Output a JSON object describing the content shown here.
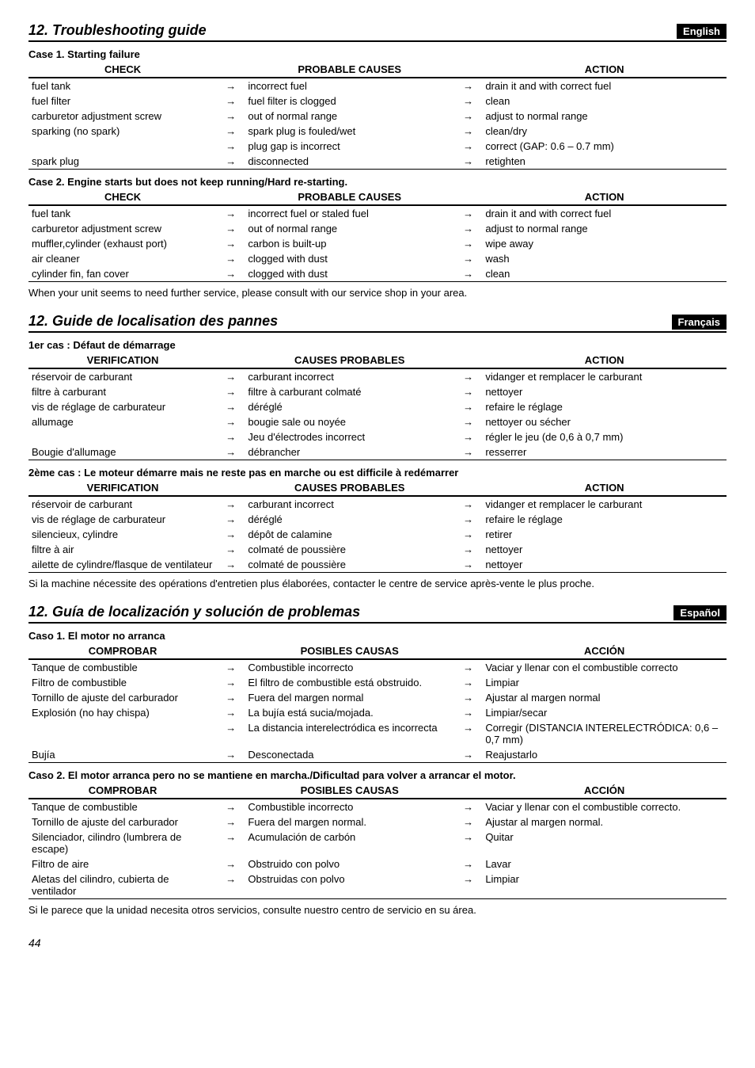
{
  "page_number": "44",
  "sections": [
    {
      "title": "12. Troubleshooting guide",
      "lang_badge": "English",
      "note": "When your unit seems to need further service, please consult with our service shop in your area.",
      "cases": [
        {
          "title": "Case 1. Starting failure",
          "headers": [
            "CHECK",
            "PROBABLE CAUSES",
            "ACTION"
          ],
          "rows": [
            [
              "fuel tank",
              "incorrect fuel",
              "drain it and with correct fuel"
            ],
            [
              "fuel filter",
              "fuel filter is clogged",
              "clean"
            ],
            [
              "carburetor adjustment screw",
              "out of normal range",
              "adjust to normal range"
            ],
            [
              "sparking (no spark)",
              "spark plug is fouled/wet",
              "clean/dry"
            ],
            [
              "",
              "plug gap is incorrect",
              "correct (GAP: 0.6 – 0.7 mm)"
            ],
            [
              "spark plug",
              "disconnected",
              "retighten"
            ]
          ]
        },
        {
          "title": "Case 2. Engine starts but does not keep running/Hard re-starting.",
          "headers": [
            "CHECK",
            "PROBABLE CAUSES",
            "ACTION"
          ],
          "rows": [
            [
              "fuel tank",
              "incorrect fuel or staled fuel",
              "drain it and with correct fuel"
            ],
            [
              "carburetor adjustment screw",
              "out of normal range",
              "adjust to normal range"
            ],
            [
              "muffler,cylinder (exhaust port)",
              "carbon is built-up",
              "wipe away"
            ],
            [
              "air cleaner",
              "clogged with dust",
              "wash"
            ],
            [
              "cylinder fin, fan cover",
              "clogged with dust",
              "clean"
            ]
          ]
        }
      ]
    },
    {
      "title": "12. Guide de localisation des pannes",
      "lang_badge": "Français",
      "note": "Si la machine nécessite des opérations d'entretien plus élaborées, contacter le centre de service après-vente le plus proche.",
      "cases": [
        {
          "title": "1er cas : Défaut de démarrage",
          "headers": [
            "VERIFICATION",
            "CAUSES PROBABLES",
            "ACTION"
          ],
          "rows": [
            [
              "réservoir de carburant",
              "carburant incorrect",
              "vidanger et remplacer le carburant"
            ],
            [
              "filtre à carburant",
              "filtre à carburant colmaté",
              "nettoyer"
            ],
            [
              "vis de réglage de carburateur",
              "déréglé",
              "refaire le réglage"
            ],
            [
              "allumage",
              "bougie sale ou noyée",
              "nettoyer ou sécher"
            ],
            [
              "",
              "Jeu d'électrodes incorrect",
              "régler le jeu (de 0,6 à 0,7 mm)"
            ],
            [
              "Bougie d'allumage",
              "débrancher",
              "resserrer"
            ]
          ]
        },
        {
          "title": "2ème cas : Le moteur démarre mais ne reste pas en marche ou est difficile à redémarrer",
          "headers": [
            "VERIFICATION",
            "CAUSES PROBABLES",
            "ACTION"
          ],
          "rows": [
            [
              "réservoir de carburant",
              "carburant incorrect",
              "vidanger et remplacer le carburant"
            ],
            [
              "vis de réglage de carburateur",
              "déréglé",
              "refaire le réglage"
            ],
            [
              "silencieux, cylindre",
              "dépôt de calamine",
              "retirer"
            ],
            [
              "filtre à air",
              "colmaté de poussière",
              "nettoyer"
            ],
            [
              "ailette de cylindre/flasque de ventilateur",
              "colmaté  de poussière",
              "nettoyer"
            ]
          ]
        }
      ]
    },
    {
      "title": "12. Guía de localización y solución de problemas",
      "lang_badge": "Español",
      "note": "Si le parece que la unidad necesita otros servicios, consulte nuestro centro de servicio en su área.",
      "cases": [
        {
          "title": "Caso 1. El motor no arranca",
          "headers": [
            "COMPROBAR",
            "POSIBLES CAUSAS",
            "ACCIÓN"
          ],
          "rows": [
            [
              "Tanque de combustible",
              "Combustible incorrecto",
              "Vaciar y llenar con el combustible correcto"
            ],
            [
              "Filtro de combustible",
              "El filtro de combustible está obstruido.",
              "Limpiar"
            ],
            [
              "Tornillo de ajuste del carburador",
              "Fuera del margen normal",
              "Ajustar al margen normal"
            ],
            [
              "Explosión (no hay chispa)",
              "La bujía está sucia/mojada.",
              "Limpiar/secar"
            ],
            [
              "",
              "La distancia interelectródica es incorrecta",
              "Corregir (DISTANCIA INTERELECTRÓDICA: 0,6 – 0,7 mm)"
            ],
            [
              "Bujía",
              "Desconectada",
              "Reajustarlo"
            ]
          ]
        },
        {
          "title": "Caso 2. El motor arranca pero no se mantiene en marcha./Dificultad para volver a arrancar el motor.",
          "headers": [
            "COMPROBAR",
            "POSIBLES CAUSAS",
            "ACCIÓN"
          ],
          "rows": [
            [
              "Tanque de combustible",
              "Combustible incorrecto",
              "Vaciar y llenar con el combustible correcto."
            ],
            [
              "Tornillo de ajuste del carburador",
              "Fuera del margen normal.",
              "Ajustar al margen normal."
            ],
            [
              "Silenciador, cilindro (lumbrera de escape)",
              "Acumulación de carbón",
              "Quitar"
            ],
            [
              "Filtro de aire",
              "Obstruido con polvo",
              "Lavar"
            ],
            [
              "Aletas del cilindro, cubierta de ventilador",
              "Obstruidas con polvo",
              "Limpiar"
            ]
          ]
        }
      ]
    }
  ],
  "arrow": "→",
  "colors": {
    "fg": "#000000",
    "bg": "#ffffff"
  }
}
